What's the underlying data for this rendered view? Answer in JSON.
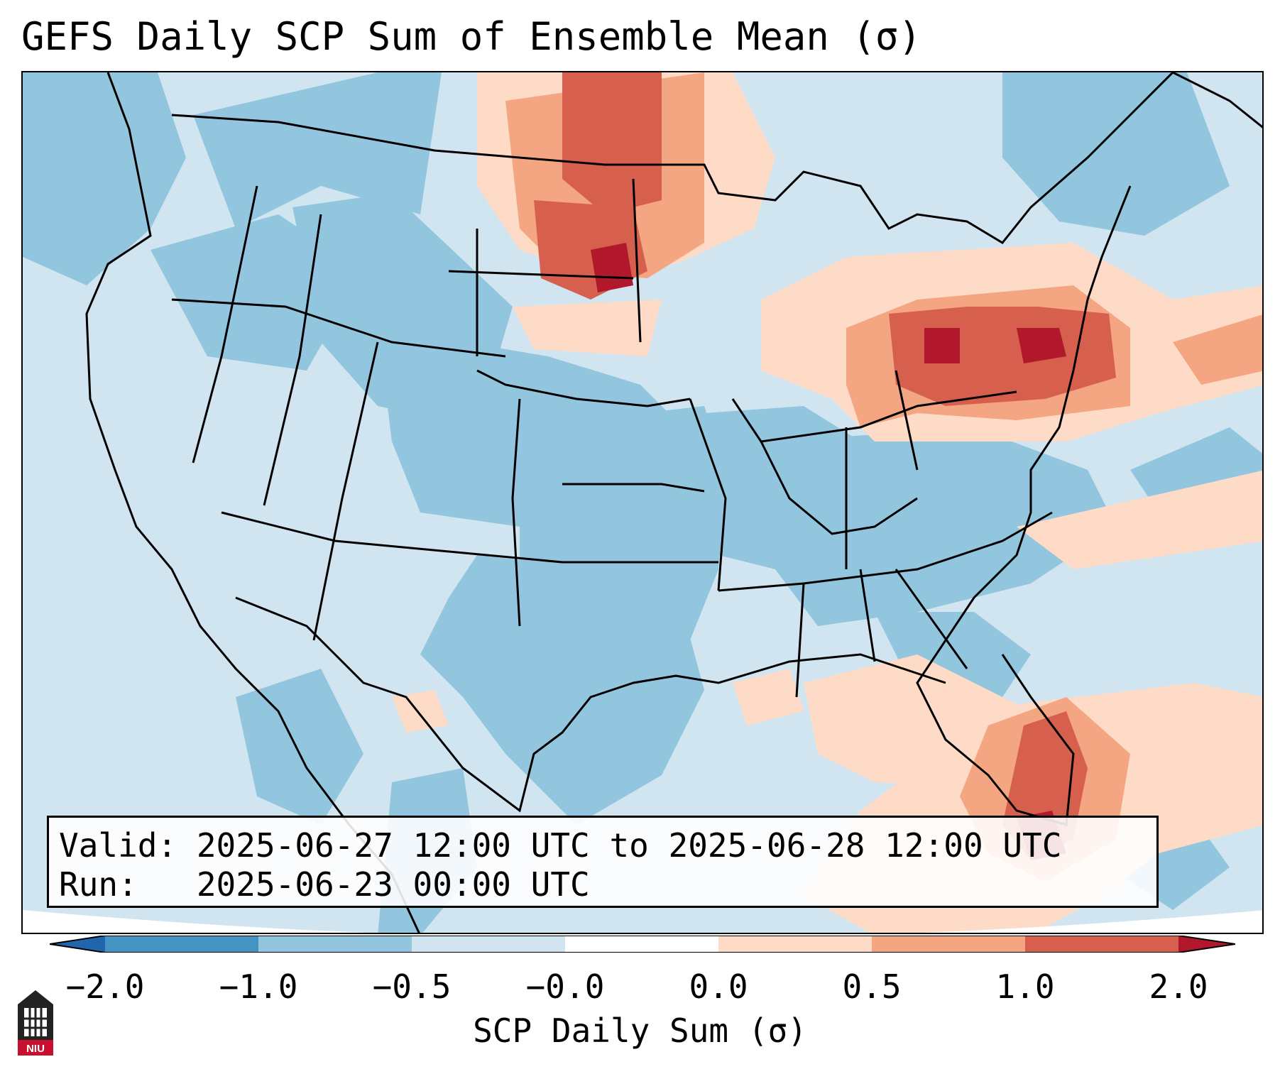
{
  "title": "GEFS Daily SCP Sum of Ensemble Mean (σ)",
  "info": {
    "valid_line": "Valid: 2025-06-27 12:00 UTC to 2025-06-28 12:00 UTC",
    "run_line": "Run:   2025-06-23 00:00 UTC"
  },
  "colorbar": {
    "label": "SCP Daily Sum (σ)",
    "ticks": [
      "−2.0",
      "−1.0",
      "−0.5",
      "−0.0",
      "0.0",
      "0.5",
      "1.0",
      "2.0"
    ],
    "colors": [
      "#2166ac",
      "#4393c3",
      "#92c5de",
      "#d1e5f0",
      "#fddbc7",
      "#f4a582",
      "#d6604d",
      "#b2182b"
    ]
  },
  "map": {
    "background_level": "#d1e5f0",
    "anomaly_regions": [
      {
        "region": "North Dakota / southern Manitoba",
        "level": "1.0"
      },
      {
        "region": "Great Lakes / Lake Ontario",
        "level": "1.0 to 2.0"
      },
      {
        "region": "Southern Florida",
        "level": "1.0 to 2.0"
      },
      {
        "region": "Central Plains / Texas",
        "level": "-0.5"
      }
    ]
  },
  "logo": {
    "text": "NIU"
  }
}
